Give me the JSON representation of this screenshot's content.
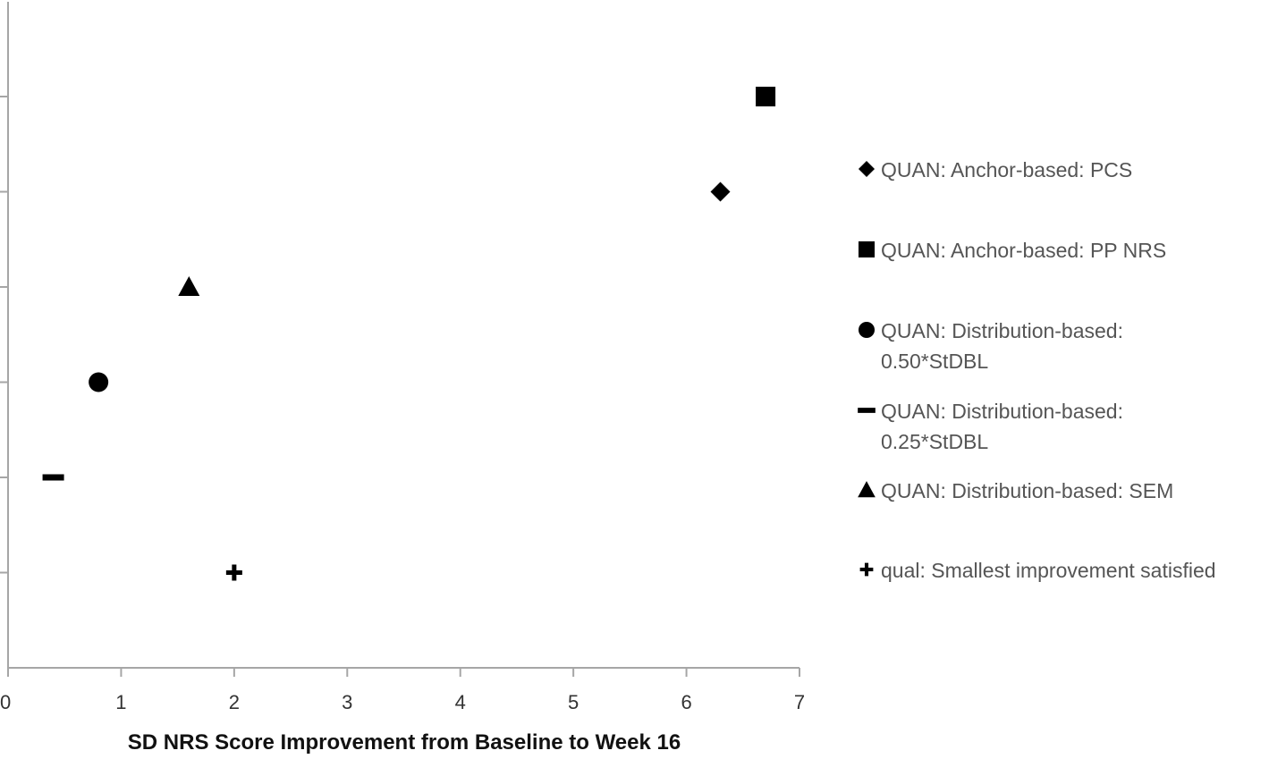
{
  "chart_data": {
    "type": "scatter",
    "title": "",
    "xlabel": "SD NRS Score Improvement from Baseline to Week 16",
    "ylabel": "",
    "xlim": [
      0,
      7
    ],
    "ylim": [
      0,
      7
    ],
    "x_ticks": [
      "0",
      "1",
      "2",
      "3",
      "4",
      "5",
      "6",
      "7"
    ],
    "grid": false,
    "legend_position": "right",
    "series": [
      {
        "name": "QUAN: Anchor-based: PCS",
        "marker": "diamond",
        "x": 6.3,
        "y": 5
      },
      {
        "name": "QUAN: Anchor-based: PP NRS",
        "marker": "square",
        "x": 6.7,
        "y": 6
      },
      {
        "name": "QUAN: Distribution-based: 0.50*StDBL",
        "marker": "circle",
        "x": 0.8,
        "y": 3
      },
      {
        "name": "QUAN: Distribution-based: 0.25*StDBL",
        "marker": "dash",
        "x": 0.4,
        "y": 2
      },
      {
        "name": "QUAN: Distribution-based: SEM",
        "marker": "triangle",
        "x": 1.6,
        "y": 4
      },
      {
        "name": "qual: Smallest improvement satisfied",
        "marker": "plus",
        "x": 2.0,
        "y": 1
      }
    ],
    "legend_lines": [
      [
        "QUAN: Anchor-based: PCS"
      ],
      [
        "QUAN: Anchor-based: PP NRS"
      ],
      [
        "QUAN: Distribution-based:",
        "0.50*StDBL"
      ],
      [
        "QUAN: Distribution-based:",
        "0.25*StDBL"
      ],
      [
        "QUAN: Distribution-based: SEM"
      ],
      [
        "qual: Smallest improvement satisfied"
      ]
    ],
    "marker_color": "#000000",
    "axis_color": "#a6a6a6"
  }
}
